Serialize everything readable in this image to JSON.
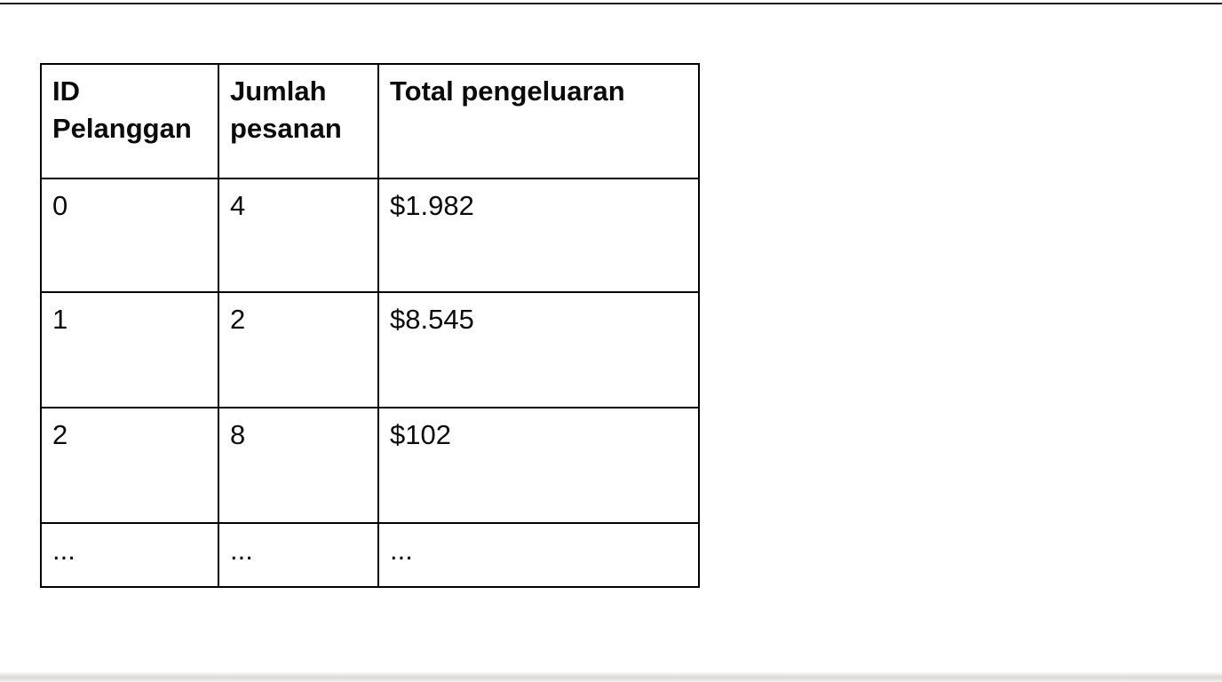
{
  "page": {
    "background": "#ffffff",
    "top_edge_line_color": "#1c1c1c",
    "bottom_strip_color": "#807a70"
  },
  "table": {
    "headers": [
      "ID Pelanggan",
      "Jumlah pesanan",
      "Total pengeluaran"
    ],
    "rows": [
      [
        "0",
        "4",
        "$1.982"
      ],
      [
        "1",
        "2",
        "$8.545"
      ],
      [
        "2",
        "8",
        "$102"
      ],
      [
        "...",
        "...",
        "..."
      ]
    ],
    "border_color": "#000000",
    "text_color": "#0b0b0b"
  }
}
